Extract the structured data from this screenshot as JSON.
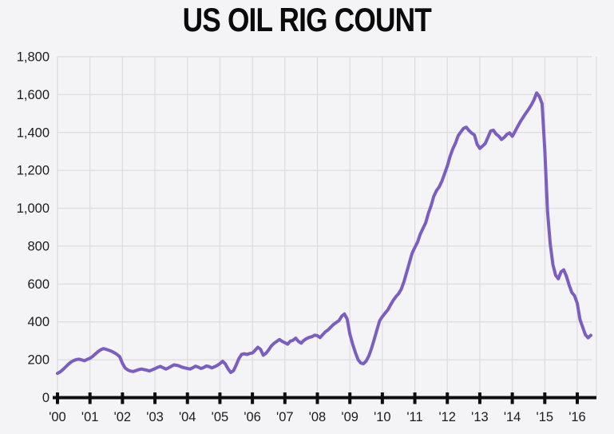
{
  "chart_data": {
    "type": "line",
    "title": "US OIL RIG COUNT",
    "xlabel": "",
    "ylabel": "",
    "grid": true,
    "legend_position": "none",
    "ylim": [
      0,
      1800
    ],
    "xlim": [
      2000,
      2016.59
    ],
    "y_ticks": [
      0,
      200,
      400,
      600,
      800,
      1000,
      1200,
      1400,
      1600,
      1800
    ],
    "y_tick_labels": [
      "0",
      "200",
      "400",
      "600",
      "800",
      "1,000",
      "1,200",
      "1,400",
      "1,600",
      "1,800"
    ],
    "x_tick_years": [
      2000,
      2001,
      2002,
      2003,
      2004,
      2005,
      2006,
      2007,
      2008,
      2009,
      2010,
      2011,
      2012,
      2013,
      2014,
      2015,
      2016
    ],
    "x_tick_labels": [
      "'00",
      "'01",
      "'02",
      "'03",
      "'04",
      "'05",
      "'06",
      "'07",
      "'08",
      "'09",
      "'10",
      "'11",
      "'12",
      "'13",
      "'14",
      "'15",
      "'16"
    ],
    "series": [
      {
        "name": "US oil rig count",
        "x_start_year": 2000,
        "x_step_years": 0.0833333,
        "values": [
          128,
          136,
          148,
          162,
          176,
          188,
          196,
          201,
          203,
          199,
          195,
          202,
          208,
          218,
          231,
          243,
          253,
          259,
          255,
          250,
          245,
          237,
          228,
          216,
          181,
          156,
          146,
          140,
          138,
          143,
          148,
          151,
          148,
          145,
          141,
          147,
          153,
          160,
          165,
          158,
          151,
          157,
          165,
          173,
          171,
          167,
          161,
          157,
          154,
          151,
          158,
          166,
          161,
          154,
          159,
          167,
          164,
          157,
          163,
          170,
          180,
          192,
          178,
          152,
          133,
          142,
          172,
          206,
          228,
          232,
          228,
          233,
          236,
          250,
          266,
          255,
          224,
          234,
          252,
          273,
          287,
          297,
          307,
          297,
          290,
          282,
          298,
          303,
          314,
          297,
          288,
          302,
          312,
          318,
          322,
          330,
          327,
          317,
          333,
          348,
          358,
          373,
          387,
          397,
          407,
          430,
          442,
          415,
          336,
          284,
          240,
          201,
          183,
          179,
          193,
          220,
          260,
          308,
          358,
          406,
          428,
          446,
          463,
          489,
          513,
          533,
          549,
          573,
          613,
          663,
          713,
          763,
          793,
          821,
          863,
          893,
          923,
          973,
          1013,
          1063,
          1093,
          1113,
          1143,
          1183,
          1223,
          1273,
          1313,
          1343,
          1383,
          1403,
          1422,
          1428,
          1410,
          1397,
          1387,
          1338,
          1316,
          1328,
          1342,
          1374,
          1408,
          1412,
          1392,
          1381,
          1363,
          1374,
          1390,
          1398,
          1380,
          1405,
          1432,
          1458,
          1480,
          1502,
          1522,
          1545,
          1572,
          1609,
          1590,
          1552,
          1310,
          986,
          813,
          703,
          646,
          628,
          664,
          675,
          641,
          594,
          555,
          538,
          498,
          413,
          372,
          332,
          316,
          329
        ]
      }
    ]
  },
  "colors": {
    "background": "#f4f3f5",
    "line": "#7b5fc0",
    "grid": "#dcdcdc",
    "axis": "#0d0d0d",
    "text": "#1c1c1c",
    "title": "#0a0a0a"
  }
}
